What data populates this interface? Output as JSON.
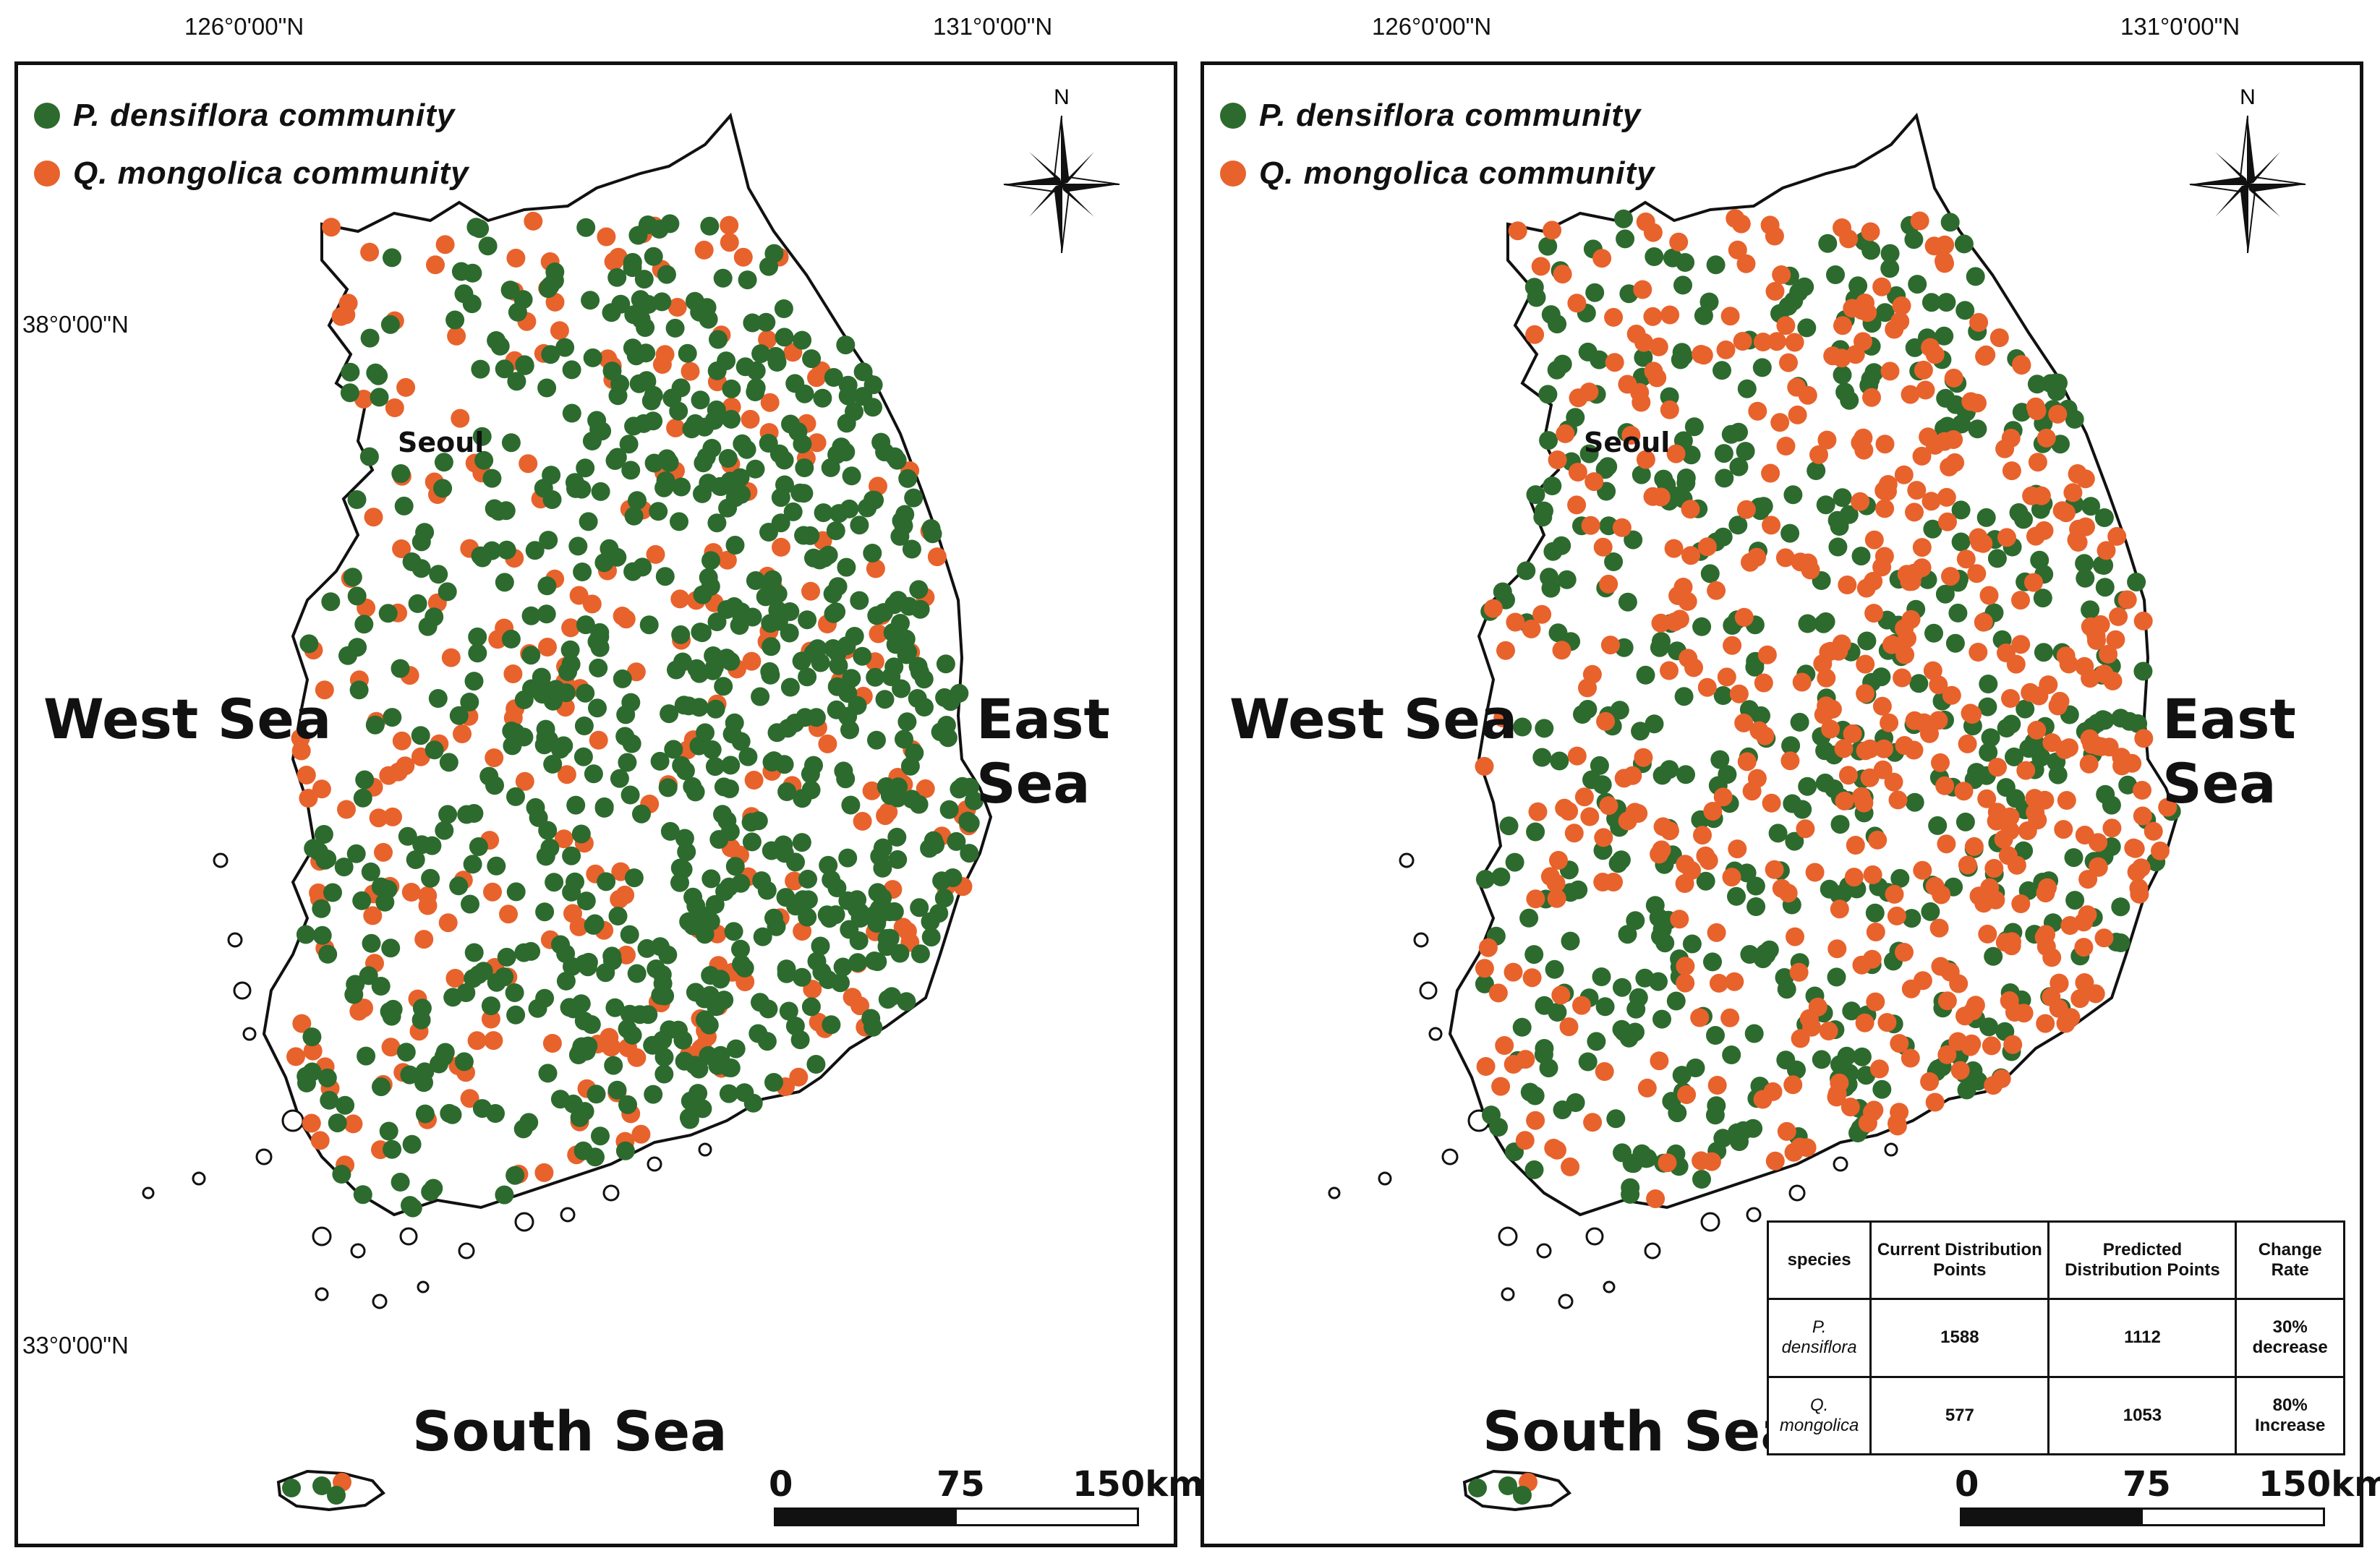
{
  "coords": {
    "lon_left": "126°0'00\"N",
    "lon_right": "131°0'00\"N",
    "lat_top": "38°0'00\"N",
    "lat_bottom": "33°0'00\"N"
  },
  "legend": [
    {
      "label": "P. densiflora community",
      "color": "#2d6a2e"
    },
    {
      "label": "Q. mongolica community",
      "color": "#e8622c"
    }
  ],
  "seas": {
    "west": "West Sea",
    "east": "East Sea",
    "south": "South Sea"
  },
  "city": "Seoul",
  "compass_label": "N",
  "scale": {
    "zero": "0",
    "mid": "75",
    "max": "150km"
  },
  "panels": [
    {
      "name": "current",
      "densiflora_points": 1588,
      "mongolica_points": 577
    },
    {
      "name": "predicted",
      "densiflora_points": 1112,
      "mongolica_points": 1053
    }
  ],
  "table": {
    "headers": [
      "species",
      "Current Distribution Points",
      "Predicted Distribution Points",
      "Change Rate"
    ],
    "rows": [
      {
        "species": "P. densiflora",
        "current": "1588",
        "predicted": "1112",
        "change": "30% decrease"
      },
      {
        "species": "Q. mongolica",
        "current": "577",
        "predicted": "1053",
        "change": "80% Increase"
      }
    ]
  },
  "colors": {
    "densiflora": "#2d6a2e",
    "mongolica": "#e8622c",
    "coast": "#111111"
  }
}
